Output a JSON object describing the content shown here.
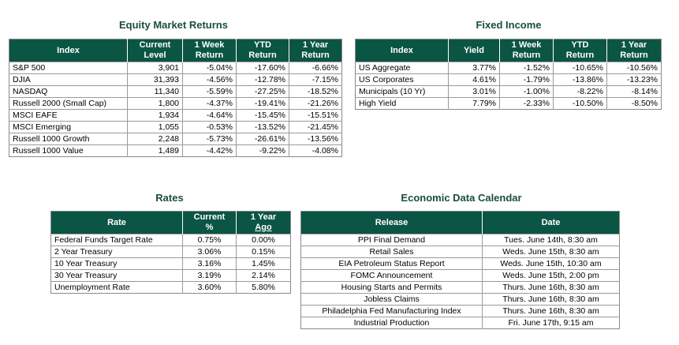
{
  "equity": {
    "title": "Equity Market Returns",
    "headers": {
      "index": "Index",
      "current_1": "Current",
      "current_2": "Level",
      "week_1": "1 Week",
      "week_2": "Return",
      "ytd_1": "YTD",
      "ytd_2": "Return",
      "year_1": "1 Year",
      "year_2": "Return"
    },
    "rows": [
      {
        "name": "S&P 500",
        "level": "3,901",
        "week": "-5.04%",
        "ytd": "-17.60%",
        "year": "-6.66%"
      },
      {
        "name": "DJIA",
        "level": "31,393",
        "week": "-4.56%",
        "ytd": "-12.78%",
        "year": "-7.15%"
      },
      {
        "name": "NASDAQ",
        "level": "11,340",
        "week": "-5.59%",
        "ytd": "-27.25%",
        "year": "-18.52%"
      },
      {
        "name": "Russell 2000 (Small Cap)",
        "level": "1,800",
        "week": "-4.37%",
        "ytd": "-19.41%",
        "year": "-21.26%"
      },
      {
        "name": "MSCI EAFE",
        "level": "1,934",
        "week": "-4.64%",
        "ytd": "-15.45%",
        "year": "-15.51%"
      },
      {
        "name": "MSCI Emerging",
        "level": "1,055",
        "week": "-0.53%",
        "ytd": "-13.52%",
        "year": "-21.45%"
      },
      {
        "name": "Russell 1000 Growth",
        "level": "2,248",
        "week": "-5.73%",
        "ytd": "-26.61%",
        "year": "-13.56%"
      },
      {
        "name": "Russell 1000 Value",
        "level": "1,489",
        "week": "-4.42%",
        "ytd": "-9.22%",
        "year": "-4.08%"
      }
    ]
  },
  "fixed": {
    "title": "Fixed Income",
    "headers": {
      "index": "Index",
      "yield": "Yield",
      "week_1": "1 Week",
      "week_2": "Return",
      "ytd_1": "YTD",
      "ytd_2": "Return",
      "year_1": "1 Year",
      "year_2": "Return"
    },
    "rows": [
      {
        "name": "US Aggregate",
        "yield": "3.77%",
        "week": "-1.52%",
        "ytd": "-10.65%",
        "year": "-10.56%"
      },
      {
        "name": "US Corporates",
        "yield": "4.61%",
        "week": "-1.79%",
        "ytd": "-13.86%",
        "year": "-13.23%"
      },
      {
        "name": "Municipals (10 Yr)",
        "yield": "3.01%",
        "week": "-1.00%",
        "ytd": "-8.22%",
        "year": "-8.14%"
      },
      {
        "name": "High Yield",
        "yield": "7.79%",
        "week": "-2.33%",
        "ytd": "-10.50%",
        "year": "-8.50%"
      }
    ]
  },
  "rates": {
    "title": "Rates",
    "headers": {
      "rate": "Rate",
      "current_1": "Current",
      "current_2": "%",
      "ago_1": "1 Year",
      "ago_2": "Ago"
    },
    "rows": [
      {
        "name": "Federal Funds Target Rate",
        "current": "0.75%",
        "ago": "0.00%"
      },
      {
        "name": "2 Year Treasury",
        "current": "3.06%",
        "ago": "0.15%"
      },
      {
        "name": "10 Year Treasury",
        "current": "3.16%",
        "ago": "1.45%"
      },
      {
        "name": "30 Year Treasury",
        "current": "3.19%",
        "ago": "2.14%"
      },
      {
        "name": "Unemployment Rate",
        "current": "3.60%",
        "ago": "5.80%"
      }
    ]
  },
  "calendar": {
    "title": "Economic Data Calendar",
    "headers": {
      "release": "Release",
      "date": "Date"
    },
    "rows": [
      {
        "release": "PPI Final Demand",
        "date": "Tues. June 14th, 8:30 am"
      },
      {
        "release": "Retail Sales",
        "date": "Weds. June 15th, 8:30 am"
      },
      {
        "release": "EIA Petroleum Status Report",
        "date": "Weds. June 15th, 10:30 am"
      },
      {
        "release": "FOMC Announcement",
        "date": "Weds. June 15th, 2:00 pm"
      },
      {
        "release": "Housing Starts and Permits",
        "date": "Thurs. June 16th, 8:30 am"
      },
      {
        "release": "Jobless Claims",
        "date": "Thurs. June 16th, 8:30 am"
      },
      {
        "release": "Philadelphia Fed Manufacturing Index",
        "date": "Thurs. June 16th, 8:30 am"
      },
      {
        "release": "Industrial Production",
        "date": "Fri. June 17th, 9:15 am"
      }
    ]
  }
}
